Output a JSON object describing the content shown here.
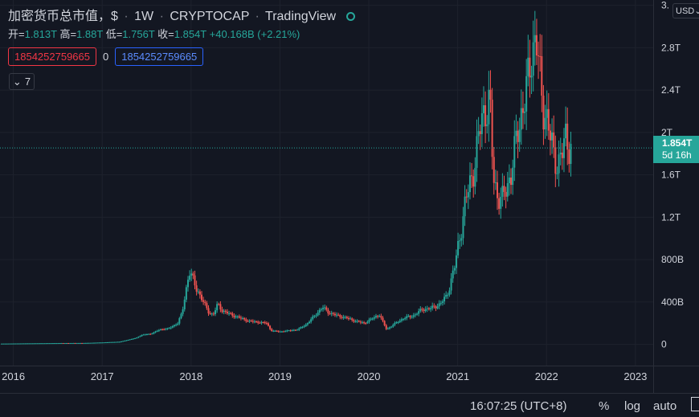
{
  "legend": {
    "title": "加密货币总市值，$",
    "interval": "1W",
    "source": "CRYPTOCAP",
    "provider": "TradingView",
    "ohlc": [
      {
        "label": "开=",
        "value": "1.813T"
      },
      {
        "label": "高=",
        "value": "1.88T"
      },
      {
        "label": "低=",
        "value": "1.756T"
      },
      {
        "label": "收=",
        "value": "1.854T"
      }
    ],
    "change": "+40.168B (+2.21%)"
  },
  "indicator": {
    "sell": "1854252759665",
    "spread": "0",
    "buy": "1854252759665"
  },
  "collapse": {
    "count": "7"
  },
  "currency": "USD",
  "last_price": {
    "price": "1.854T",
    "countdown": "5d 16h"
  },
  "status_bar": {
    "time": "16:07:25 (UTC+8)",
    "percent": "%",
    "log": "log",
    "auto": "auto"
  },
  "colors": {
    "up": "#26a69a",
    "down": "#ef5350",
    "bg": "#131722",
    "grid": "#1e222d",
    "last_line": "#26a69a"
  },
  "chart_data": {
    "type": "candlestick",
    "interval": "1W",
    "unit": "USD",
    "y_ticks": [
      "0",
      "400B",
      "800B",
      "1.2T",
      "1.6T",
      "2T",
      "2.4T",
      "2.8T",
      "3."
    ],
    "y_tick_values": [
      0,
      0.4,
      0.8,
      1.2,
      1.6,
      2.0,
      2.4,
      2.8,
      3.2
    ],
    "ylim": [
      -0.2,
      3.25
    ],
    "x_ticks": [
      "2016",
      "2017",
      "2018",
      "2019",
      "2020",
      "2021",
      "2022",
      "2023"
    ],
    "x_tick_values": [
      2016.0,
      2017.0,
      2018.0,
      2019.0,
      2020.0,
      2021.0,
      2022.0,
      2023.0
    ],
    "xlim": [
      2015.85,
      2023.2
    ],
    "trend": [
      [
        2015.85,
        0.007
      ],
      [
        2016.5,
        0.012
      ],
      [
        2016.8,
        0.013
      ],
      [
        2017.0,
        0.018
      ],
      [
        2017.2,
        0.025
      ],
      [
        2017.38,
        0.06
      ],
      [
        2017.45,
        0.09
      ],
      [
        2017.55,
        0.1
      ],
      [
        2017.65,
        0.14
      ],
      [
        2017.75,
        0.15
      ],
      [
        2017.85,
        0.2
      ],
      [
        2017.9,
        0.3
      ],
      [
        2017.95,
        0.55
      ],
      [
        2017.98,
        0.7
      ],
      [
        2018.02,
        0.6
      ],
      [
        2018.08,
        0.5
      ],
      [
        2018.15,
        0.38
      ],
      [
        2018.2,
        0.3
      ],
      [
        2018.25,
        0.28
      ],
      [
        2018.3,
        0.38
      ],
      [
        2018.35,
        0.32
      ],
      [
        2018.45,
        0.28
      ],
      [
        2018.55,
        0.25
      ],
      [
        2018.65,
        0.22
      ],
      [
        2018.75,
        0.21
      ],
      [
        2018.85,
        0.2
      ],
      [
        2018.9,
        0.13
      ],
      [
        2019.0,
        0.12
      ],
      [
        2019.1,
        0.13
      ],
      [
        2019.2,
        0.14
      ],
      [
        2019.3,
        0.19
      ],
      [
        2019.4,
        0.28
      ],
      [
        2019.48,
        0.35
      ],
      [
        2019.55,
        0.3
      ],
      [
        2019.65,
        0.27
      ],
      [
        2019.75,
        0.25
      ],
      [
        2019.85,
        0.22
      ],
      [
        2019.95,
        0.2
      ],
      [
        2020.05,
        0.25
      ],
      [
        2020.12,
        0.28
      ],
      [
        2020.2,
        0.14
      ],
      [
        2020.3,
        0.2
      ],
      [
        2020.4,
        0.25
      ],
      [
        2020.5,
        0.27
      ],
      [
        2020.6,
        0.33
      ],
      [
        2020.7,
        0.34
      ],
      [
        2020.8,
        0.38
      ],
      [
        2020.87,
        0.45
      ],
      [
        2020.92,
        0.58
      ],
      [
        2020.97,
        0.75
      ],
      [
        2021.02,
        1.0
      ],
      [
        2021.08,
        1.3
      ],
      [
        2021.13,
        1.5
      ],
      [
        2021.18,
        1.65
      ],
      [
        2021.23,
        1.9
      ],
      [
        2021.28,
        2.2
      ],
      [
        2021.32,
        2.2
      ],
      [
        2021.36,
        2.3
      ],
      [
        2021.4,
        1.6
      ],
      [
        2021.45,
        1.4
      ],
      [
        2021.5,
        1.35
      ],
      [
        2021.55,
        1.5
      ],
      [
        2021.6,
        1.6
      ],
      [
        2021.63,
        1.75
      ],
      [
        2021.68,
        2.05
      ],
      [
        2021.72,
        2.2
      ],
      [
        2021.76,
        2.3
      ],
      [
        2021.8,
        2.55
      ],
      [
        2021.84,
        2.8
      ],
      [
        2021.88,
        2.9
      ],
      [
        2021.92,
        2.55
      ],
      [
        2021.96,
        2.25
      ],
      [
        2022.0,
        2.15
      ],
      [
        2022.04,
        1.95
      ],
      [
        2022.08,
        1.8
      ],
      [
        2022.13,
        1.7
      ],
      [
        2022.18,
        1.8
      ],
      [
        2022.22,
        2.0
      ],
      [
        2022.26,
        1.85
      ],
      [
        2022.28,
        1.854
      ]
    ]
  }
}
